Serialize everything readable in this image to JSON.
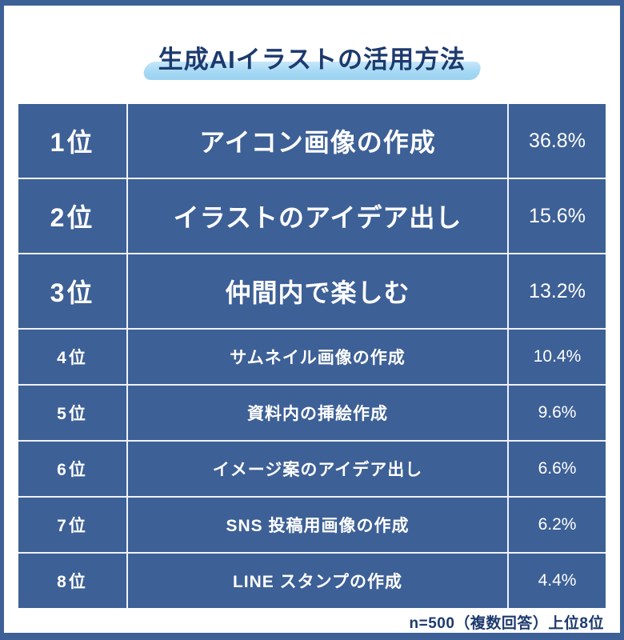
{
  "title": {
    "text": "生成AIイラストの活用方法"
  },
  "colors": {
    "table_blue": "#3d6096",
    "frame_blue": "#3d6096",
    "navy_text": "#1d3a6e",
    "highlight_blue": "#a5d9f4",
    "divider_white": "#eef3f9",
    "row_text": "#ffffff"
  },
  "table": {
    "rows": [
      {
        "rank": "1位",
        "item": "アイコン画像の作成",
        "pct": "36.8%"
      },
      {
        "rank": "2位",
        "item": "イラストのアイデア出し",
        "pct": "15.6%"
      },
      {
        "rank": "3位",
        "item": "仲間内で楽しむ",
        "pct": "13.2%"
      },
      {
        "rank": "4位",
        "item": "サムネイル画像の作成",
        "pct": "10.4%"
      },
      {
        "rank": "5位",
        "item": "資料内の挿絵作成",
        "pct": "9.6%"
      },
      {
        "rank": "6位",
        "item": "イメージ案のアイデア出し",
        "pct": "6.6%"
      },
      {
        "rank": "7位",
        "item": "SNS 投稿用画像の作成",
        "pct": "6.2%"
      },
      {
        "rank": "8位",
        "item": "LINE スタンプの作成",
        "pct": "4.4%"
      }
    ]
  },
  "footer": {
    "note": "n=500（複数回答）上位8位"
  },
  "chart_data": {
    "type": "table",
    "title": "生成AIイラストの活用方法",
    "categories": [
      "アイコン画像の作成",
      "イラストのアイデア出し",
      "仲間内で楽しむ",
      "サムネイル画像の作成",
      "資料内の挿絵作成",
      "イメージ案のアイデア出し",
      "SNS 投稿用画像の作成",
      "LINE スタンプの作成"
    ],
    "values": [
      36.8,
      15.6,
      13.2,
      10.4,
      9.6,
      6.6,
      6.2,
      4.4
    ],
    "value_unit": "%",
    "ranks": [
      "1位",
      "2位",
      "3位",
      "4位",
      "5位",
      "6位",
      "7位",
      "8位"
    ],
    "note": "n=500（複数回答）上位8位"
  }
}
